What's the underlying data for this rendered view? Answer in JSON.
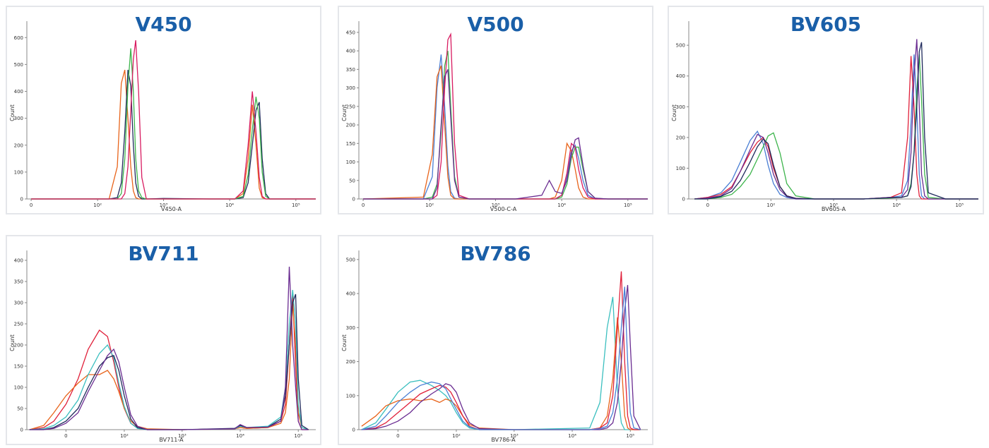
{
  "chart_data": [
    {
      "type": "line",
      "title": "V450",
      "x_label": "V450-A",
      "y_label": "Count",
      "xscale": "biexponential",
      "xlim": [
        -3,
        200000
      ],
      "ylim": [
        0,
        640
      ],
      "xticks": [
        0,
        {
          "value": 100,
          "label": "10²"
        },
        {
          "value": 1000,
          "label": "10³"
        },
        {
          "value": 10000,
          "label": "10⁴"
        },
        {
          "value": 100000,
          "label": "10⁵"
        }
      ],
      "yticks": [
        0,
        100,
        200,
        300,
        400,
        500,
        600
      ],
      "x": [
        0,
        150,
        200,
        230,
        260,
        290,
        320,
        350,
        380,
        420,
        470,
        550,
        1000,
        5000,
        12000,
        16000,
        19000,
        22000,
        25000,
        28000,
        31000,
        35000,
        40000,
        60000,
        200000
      ],
      "series": [
        {
          "color": "#e8641b",
          "values": [
            0,
            0,
            120,
            430,
            480,
            300,
            120,
            30,
            5,
            0,
            0,
            0,
            0,
            0,
            0,
            20,
            150,
            350,
            200,
            40,
            5,
            0,
            0,
            0,
            0
          ]
        },
        {
          "color": "#1f2a5c",
          "values": [
            0,
            0,
            5,
            60,
            250,
            480,
            420,
            200,
            60,
            10,
            0,
            0,
            2,
            0,
            0,
            5,
            60,
            200,
            330,
            360,
            150,
            20,
            0,
            0,
            0
          ]
        },
        {
          "color": "#3cb44b",
          "values": [
            0,
            0,
            0,
            20,
            150,
            420,
            560,
            400,
            150,
            30,
            5,
            0,
            0,
            0,
            0,
            10,
            90,
            260,
            380,
            300,
            100,
            10,
            0,
            0,
            0
          ]
        },
        {
          "color": "#d81b60",
          "values": [
            0,
            0,
            0,
            0,
            20,
            120,
            330,
            520,
            590,
            400,
            80,
            0,
            0,
            0,
            0,
            30,
            200,
            400,
            250,
            80,
            10,
            0,
            0,
            0,
            0
          ]
        }
      ]
    },
    {
      "type": "line",
      "title": "V500",
      "x_label": "V500-C-A",
      "y_label": "Count",
      "xscale": "biexponential",
      "xlim": [
        -3,
        200000
      ],
      "ylim": [
        0,
        465
      ],
      "xticks": [
        0,
        {
          "value": 100,
          "label": "10²"
        },
        {
          "value": 1000,
          "label": "10³"
        },
        {
          "value": 10000,
          "label": "10⁴"
        },
        {
          "value": 100000,
          "label": "10⁵"
        }
      ],
      "yticks": [
        0,
        50,
        100,
        150,
        200,
        250,
        300,
        350,
        400,
        450
      ],
      "x": [
        0,
        80,
        110,
        130,
        150,
        170,
        190,
        210,
        240,
        280,
        400,
        2000,
        5000,
        6500,
        8000,
        10000,
        12000,
        14000,
        16000,
        18000,
        21000,
        25000,
        32000,
        50000,
        200000
      ],
      "series": [
        {
          "color": "#4a7fd4",
          "values": [
            0,
            0,
            60,
            300,
            390,
            250,
            90,
            20,
            2,
            0,
            0,
            0,
            0,
            0,
            0,
            10,
            60,
            130,
            145,
            110,
            50,
            10,
            0,
            0,
            0
          ]
        },
        {
          "color": "#e8641b",
          "values": [
            0,
            5,
            120,
            330,
            360,
            200,
            60,
            10,
            0,
            0,
            0,
            0,
            0,
            0,
            5,
            50,
            150,
            130,
            80,
            30,
            5,
            0,
            0,
            0,
            0
          ]
        },
        {
          "color": "#3cb44b",
          "values": [
            0,
            0,
            5,
            40,
            180,
            360,
            400,
            250,
            60,
            5,
            0,
            0,
            0,
            0,
            0,
            5,
            40,
            110,
            140,
            140,
            80,
            20,
            2,
            0,
            0
          ]
        },
        {
          "color": "#d81b60",
          "values": [
            0,
            0,
            0,
            10,
            100,
            300,
            430,
            445,
            150,
            10,
            0,
            0,
            0,
            0,
            0,
            10,
            70,
            150,
            140,
            80,
            30,
            5,
            0,
            0,
            0
          ]
        },
        {
          "color": "#6a2c91",
          "values": [
            0,
            0,
            0,
            30,
            200,
            330,
            350,
            220,
            50,
            5,
            0,
            0,
            10,
            50,
            20,
            15,
            50,
            120,
            160,
            165,
            90,
            20,
            2,
            0,
            0
          ]
        }
      ]
    },
    {
      "type": "line",
      "title": "BV605",
      "x_label": "BV605-A",
      "y_label": "Count",
      "xscale": "biexponential",
      "xlim": [
        -15,
        200000
      ],
      "ylim": [
        0,
        560
      ],
      "xticks": [
        0,
        {
          "value": 100,
          "label": "10²"
        },
        {
          "value": 1000,
          "label": "10³"
        },
        {
          "value": 10000,
          "label": "10⁴"
        },
        {
          "value": 100000,
          "label": "10⁵"
        }
      ],
      "yticks": [
        0,
        100,
        200,
        300,
        400,
        500
      ],
      "x": [
        -10,
        0,
        10,
        20,
        30,
        45,
        60,
        75,
        90,
        110,
        140,
        180,
        250,
        500,
        3000,
        8000,
        12000,
        15000,
        17000,
        19000,
        21000,
        23000,
        25000,
        28000,
        32000,
        60000,
        200000
      ],
      "series": [
        {
          "color": "#4a7fd4",
          "values": [
            0,
            5,
            20,
            60,
            120,
            190,
            220,
            180,
            110,
            50,
            15,
            5,
            0,
            0,
            0,
            5,
            10,
            60,
            250,
            470,
            300,
            80,
            10,
            0,
            0,
            0,
            0
          ]
        },
        {
          "color": "#e0203a",
          "values": [
            0,
            5,
            15,
            40,
            90,
            150,
            185,
            200,
            170,
            100,
            40,
            10,
            2,
            0,
            0,
            5,
            20,
            200,
            465,
            300,
            80,
            10,
            0,
            0,
            0,
            0,
            0
          ]
        },
        {
          "color": "#3cb44b",
          "values": [
            0,
            0,
            5,
            15,
            40,
            80,
            130,
            170,
            205,
            215,
            150,
            50,
            10,
            0,
            0,
            3,
            5,
            10,
            50,
            150,
            350,
            470,
            320,
            80,
            5,
            0,
            0
          ]
        },
        {
          "color": "#6a2c91",
          "values": [
            0,
            3,
            10,
            35,
            90,
            160,
            210,
            200,
            150,
            80,
            30,
            8,
            0,
            0,
            0,
            5,
            5,
            30,
            150,
            400,
            520,
            300,
            80,
            10,
            0,
            0,
            0
          ]
        },
        {
          "color": "#1f2a5c",
          "values": [
            0,
            0,
            8,
            25,
            60,
            120,
            170,
            195,
            180,
            110,
            40,
            10,
            2,
            0,
            0,
            4,
            5,
            10,
            40,
            150,
            300,
            480,
            510,
            200,
            20,
            0,
            0
          ]
        }
      ]
    },
    {
      "type": "line",
      "title": "BV711",
      "x_label": "BV711-A",
      "y_label": "Count",
      "xscale": "biexponential",
      "xlim": [
        -45,
        200000
      ],
      "ylim": [
        0,
        410
      ],
      "xticks": [
        0,
        {
          "value": 100,
          "label": "10²"
        },
        {
          "value": 1000,
          "label": "10³"
        },
        {
          "value": 10000,
          "label": "10⁴"
        },
        {
          "value": 100000,
          "label": "10⁵"
        }
      ],
      "yticks": [
        0,
        50,
        100,
        150,
        200,
        250,
        300,
        350,
        400
      ],
      "x": [
        -40,
        -20,
        -10,
        0,
        10,
        20,
        35,
        50,
        65,
        80,
        100,
        130,
        170,
        250,
        1000,
        8000,
        10000,
        13000,
        30000,
        50000,
        60000,
        70000,
        80000,
        90000,
        100000,
        115000,
        150000
      ],
      "series": [
        {
          "color": "#e0203a",
          "values": [
            0,
            5,
            20,
            60,
            120,
            190,
            235,
            220,
            160,
            100,
            50,
            15,
            5,
            0,
            0,
            2,
            5,
            3,
            5,
            20,
            60,
            200,
            320,
            150,
            20,
            0,
            0
          ]
        },
        {
          "color": "#e8641b",
          "values": [
            0,
            10,
            40,
            80,
            110,
            130,
            130,
            140,
            120,
            90,
            50,
            20,
            8,
            2,
            0,
            2,
            5,
            3,
            5,
            15,
            40,
            120,
            300,
            200,
            40,
            5,
            0
          ]
        },
        {
          "color": "#3bbfbf",
          "values": [
            0,
            2,
            10,
            30,
            70,
            130,
            180,
            200,
            170,
            110,
            55,
            15,
            3,
            0,
            0,
            2,
            8,
            5,
            8,
            30,
            100,
            250,
            330,
            250,
            60,
            5,
            0
          ]
        },
        {
          "color": "#1f2a5c",
          "values": [
            0,
            0,
            5,
            20,
            50,
            100,
            150,
            170,
            175,
            140,
            80,
            25,
            5,
            0,
            0,
            3,
            10,
            5,
            6,
            25,
            80,
            200,
            300,
            320,
            120,
            10,
            0
          ]
        },
        {
          "color": "#6a2c91",
          "values": [
            0,
            0,
            3,
            15,
            40,
            90,
            140,
            175,
            190,
            160,
            100,
            35,
            8,
            0,
            0,
            2,
            12,
            5,
            6,
            20,
            100,
            385,
            200,
            100,
            20,
            0,
            0
          ]
        }
      ]
    },
    {
      "type": "line",
      "title": "BV786",
      "x_label": "BV786-A",
      "y_label": "Count",
      "xscale": "biexponential",
      "xlim": [
        -45,
        200000
      ],
      "ylim": [
        0,
        510
      ],
      "xticks": [
        0,
        {
          "value": 100,
          "label": "10²"
        },
        {
          "value": 1000,
          "label": "10³"
        },
        {
          "value": 10000,
          "label": "10⁴"
        },
        {
          "value": 100000,
          "label": "10⁵"
        }
      ],
      "yticks": [
        0,
        100,
        200,
        300,
        400,
        500
      ],
      "x": [
        -40,
        -20,
        -10,
        0,
        10,
        20,
        35,
        50,
        65,
        80,
        100,
        130,
        170,
        250,
        1000,
        20000,
        30000,
        40000,
        50000,
        60000,
        70000,
        80000,
        90000,
        100000,
        115000,
        150000
      ],
      "series": [
        {
          "color": "#3bbfbf",
          "values": [
            0,
            20,
            60,
            110,
            140,
            145,
            130,
            115,
            100,
            80,
            50,
            20,
            5,
            0,
            0,
            5,
            80,
            300,
            390,
            120,
            20,
            0,
            0,
            0,
            0,
            0
          ]
        },
        {
          "color": "#e8641b",
          "values": [
            10,
            40,
            70,
            85,
            90,
            85,
            90,
            80,
            90,
            85,
            70,
            40,
            15,
            5,
            0,
            0,
            5,
            40,
            150,
            330,
            200,
            40,
            5,
            0,
            0,
            0
          ]
        },
        {
          "color": "#e0203a",
          "values": [
            0,
            5,
            20,
            50,
            80,
            105,
            120,
            130,
            125,
            110,
            80,
            40,
            10,
            0,
            0,
            0,
            5,
            20,
            100,
            300,
            465,
            200,
            40,
            5,
            0,
            0
          ]
        },
        {
          "color": "#6a2c91",
          "values": [
            0,
            3,
            10,
            25,
            50,
            80,
            105,
            120,
            135,
            130,
            110,
            60,
            20,
            3,
            0,
            0,
            0,
            5,
            20,
            80,
            200,
            350,
            425,
            250,
            40,
            0
          ]
        },
        {
          "color": "#4a7fd4",
          "values": [
            0,
            10,
            40,
            80,
            110,
            130,
            140,
            135,
            120,
            90,
            60,
            25,
            8,
            0,
            0,
            0,
            3,
            10,
            50,
            150,
            300,
            420,
            200,
            50,
            5,
            0
          ]
        }
      ]
    }
  ]
}
